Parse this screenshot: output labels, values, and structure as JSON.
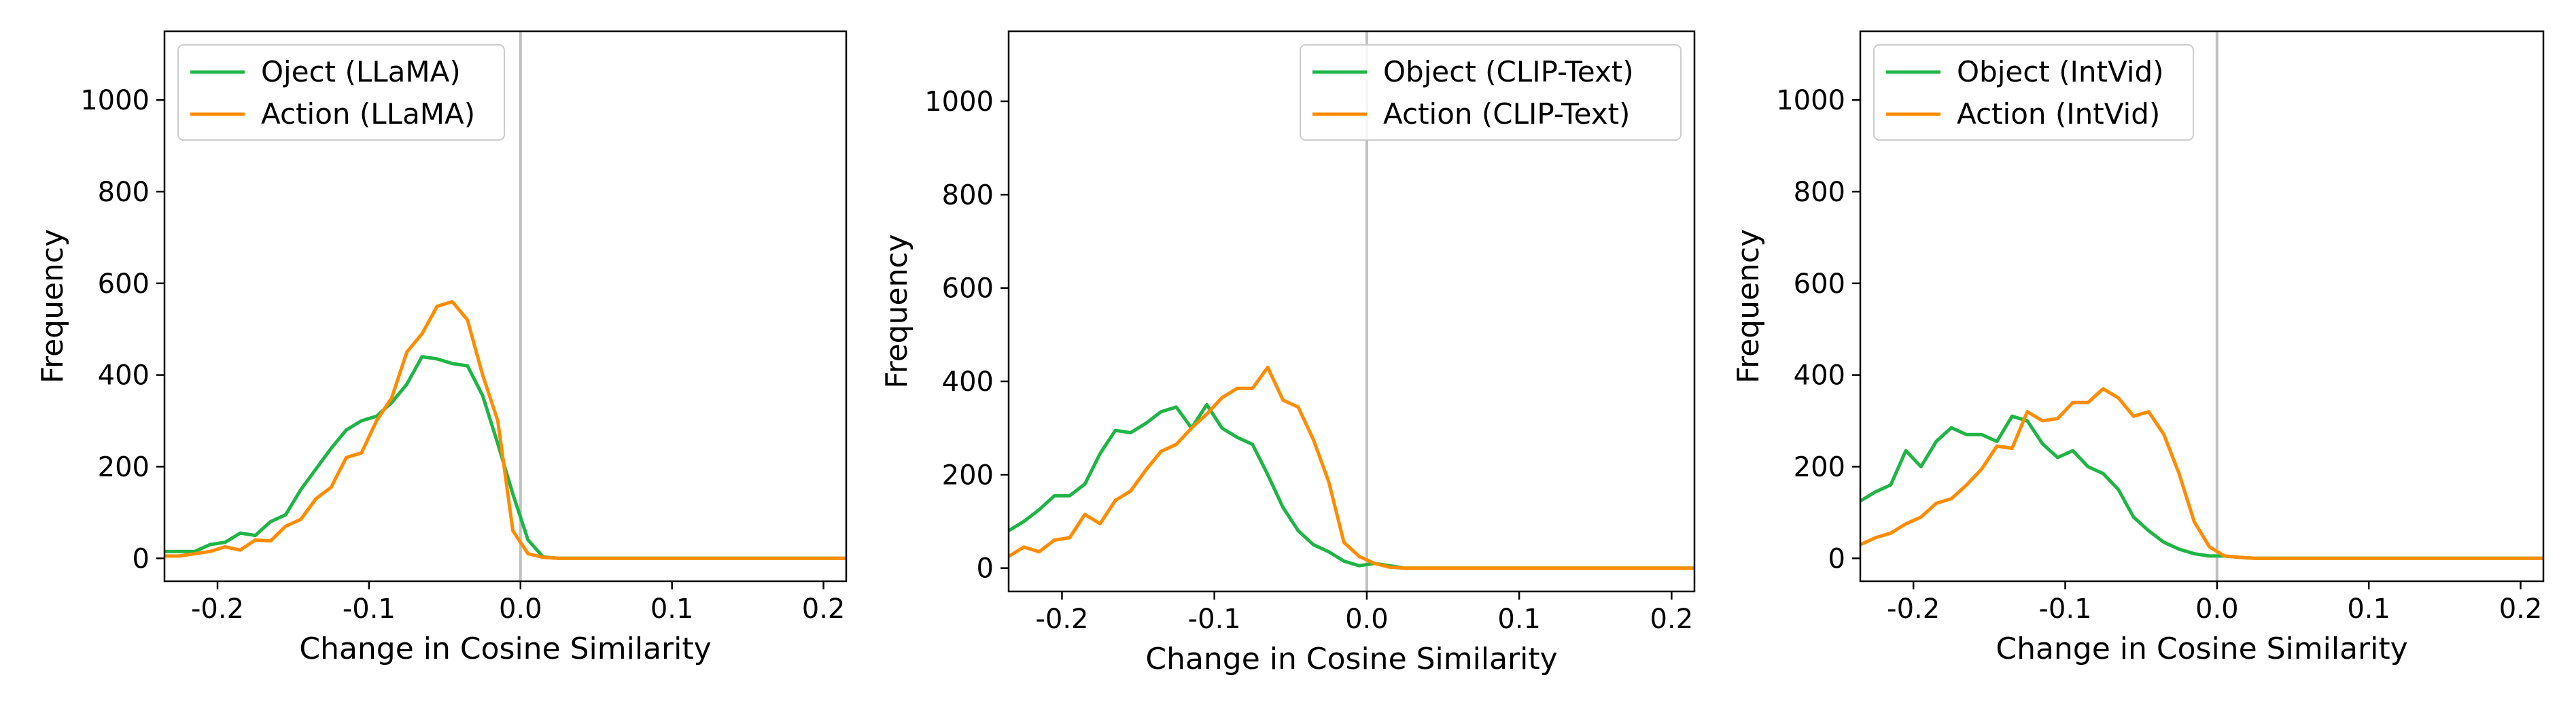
{
  "colors": {
    "object": "#1fb546",
    "action": "#ff8c00",
    "zero_line": "#c0c0c0",
    "axes": "#000000"
  },
  "chart_data": [
    {
      "type": "line",
      "xlabel": "Change in Cosine Similarity",
      "ylabel": "Frequency",
      "xlim": [
        -0.235,
        0.215
      ],
      "ylim": [
        -50,
        1150
      ],
      "xticks": [
        -0.2,
        -0.1,
        0.0,
        0.1,
        0.2
      ],
      "xtick_labels": [
        "-0.2",
        "-0.1",
        "0.0",
        "0.1",
        "0.2"
      ],
      "yticks": [
        0,
        200,
        400,
        600,
        800,
        1000
      ],
      "ytick_labels": [
        "0",
        "200",
        "400",
        "600",
        "800",
        "1000"
      ],
      "vline_x": 0.0,
      "legend_position": "top-left",
      "series": [
        {
          "name": "Oject (LLaMA)",
          "color_key": "object",
          "x": [
            -0.235,
            -0.225,
            -0.215,
            -0.205,
            -0.195,
            -0.185,
            -0.175,
            -0.165,
            -0.155,
            -0.145,
            -0.135,
            -0.125,
            -0.115,
            -0.105,
            -0.095,
            -0.085,
            -0.075,
            -0.065,
            -0.055,
            -0.045,
            -0.035,
            -0.025,
            -0.015,
            -0.005,
            0.005,
            0.015,
            0.025,
            0.05,
            0.1,
            0.15,
            0.2,
            0.215
          ],
          "y": [
            15,
            15,
            15,
            30,
            35,
            55,
            50,
            80,
            95,
            150,
            195,
            240,
            280,
            300,
            310,
            340,
            380,
            440,
            435,
            425,
            420,
            355,
            250,
            140,
            40,
            3,
            0,
            0,
            0,
            0,
            0,
            0
          ]
        },
        {
          "name": "Action (LLaMA)",
          "color_key": "action",
          "x": [
            -0.235,
            -0.225,
            -0.215,
            -0.205,
            -0.195,
            -0.185,
            -0.175,
            -0.165,
            -0.155,
            -0.145,
            -0.135,
            -0.125,
            -0.115,
            -0.105,
            -0.095,
            -0.085,
            -0.075,
            -0.065,
            -0.055,
            -0.045,
            -0.035,
            -0.025,
            -0.015,
            -0.005,
            0.005,
            0.015,
            0.025,
            0.05,
            0.1,
            0.15,
            0.2,
            0.215
          ],
          "y": [
            5,
            5,
            10,
            15,
            25,
            18,
            40,
            38,
            70,
            85,
            130,
            155,
            220,
            230,
            300,
            350,
            450,
            490,
            550,
            560,
            520,
            400,
            300,
            60,
            10,
            2,
            0,
            0,
            0,
            0,
            0,
            0
          ]
        }
      ]
    },
    {
      "type": "line",
      "xlabel": "Change in Cosine Similarity",
      "ylabel": "Frequency",
      "xlim": [
        -0.235,
        0.215
      ],
      "ylim": [
        -50,
        1150
      ],
      "xticks": [
        -0.2,
        -0.1,
        0.0,
        0.1,
        0.2
      ],
      "xtick_labels": [
        "-0.2",
        "-0.1",
        "0.0",
        "0.1",
        "0.2"
      ],
      "yticks": [
        0,
        200,
        400,
        600,
        800,
        1000
      ],
      "ytick_labels": [
        "0",
        "200",
        "400",
        "600",
        "800",
        "1000"
      ],
      "vline_x": 0.0,
      "legend_position": "top-right",
      "series": [
        {
          "name": "Object (CLIP-Text)",
          "color_key": "object",
          "x": [
            -0.235,
            -0.225,
            -0.215,
            -0.205,
            -0.195,
            -0.185,
            -0.175,
            -0.165,
            -0.155,
            -0.145,
            -0.135,
            -0.125,
            -0.115,
            -0.105,
            -0.095,
            -0.085,
            -0.075,
            -0.065,
            -0.055,
            -0.045,
            -0.035,
            -0.025,
            -0.015,
            -0.005,
            0.005,
            0.015,
            0.025,
            0.05,
            0.1,
            0.15,
            0.2,
            0.215
          ],
          "y": [
            80,
            100,
            125,
            155,
            155,
            180,
            245,
            295,
            290,
            310,
            335,
            345,
            300,
            350,
            300,
            280,
            265,
            200,
            130,
            80,
            50,
            35,
            15,
            5,
            10,
            5,
            0,
            0,
            0,
            0,
            0,
            0
          ]
        },
        {
          "name": "Action (CLIP-Text)",
          "color_key": "action",
          "x": [
            -0.235,
            -0.225,
            -0.215,
            -0.205,
            -0.195,
            -0.185,
            -0.175,
            -0.165,
            -0.155,
            -0.145,
            -0.135,
            -0.125,
            -0.115,
            -0.105,
            -0.095,
            -0.085,
            -0.075,
            -0.065,
            -0.055,
            -0.045,
            -0.035,
            -0.025,
            -0.015,
            -0.005,
            0.005,
            0.015,
            0.025,
            0.05,
            0.1,
            0.15,
            0.2,
            0.215
          ],
          "y": [
            25,
            45,
            35,
            60,
            65,
            115,
            95,
            145,
            165,
            210,
            250,
            265,
            300,
            330,
            365,
            385,
            385,
            430,
            360,
            345,
            275,
            185,
            55,
            25,
            10,
            2,
            0,
            0,
            0,
            0,
            0,
            0
          ]
        }
      ]
    },
    {
      "type": "line",
      "xlabel": "Change in Cosine Similarity",
      "ylabel": "Frequency",
      "xlim": [
        -0.235,
        0.215
      ],
      "ylim": [
        -50,
        1150
      ],
      "xticks": [
        -0.2,
        -0.1,
        0.0,
        0.1,
        0.2
      ],
      "xtick_labels": [
        "-0.2",
        "-0.1",
        "0.0",
        "0.1",
        "0.2"
      ],
      "yticks": [
        0,
        200,
        400,
        600,
        800,
        1000
      ],
      "ytick_labels": [
        "0",
        "200",
        "400",
        "600",
        "800",
        "1000"
      ],
      "vline_x": 0.0,
      "legend_position": "top-left",
      "series": [
        {
          "name": "Object (IntVid)",
          "color_key": "object",
          "x": [
            -0.235,
            -0.225,
            -0.215,
            -0.205,
            -0.195,
            -0.185,
            -0.175,
            -0.165,
            -0.155,
            -0.145,
            -0.135,
            -0.125,
            -0.115,
            -0.105,
            -0.095,
            -0.085,
            -0.075,
            -0.065,
            -0.055,
            -0.045,
            -0.035,
            -0.025,
            -0.015,
            -0.005,
            0.005,
            0.015,
            0.025,
            0.05,
            0.1,
            0.15,
            0.2,
            0.215
          ],
          "y": [
            125,
            145,
            160,
            235,
            200,
            255,
            285,
            270,
            270,
            255,
            310,
            300,
            250,
            220,
            235,
            200,
            185,
            150,
            90,
            60,
            35,
            20,
            10,
            5,
            5,
            2,
            0,
            0,
            0,
            0,
            0,
            0
          ]
        },
        {
          "name": "Action (IntVid)",
          "color_key": "action",
          "x": [
            -0.235,
            -0.225,
            -0.215,
            -0.205,
            -0.195,
            -0.185,
            -0.175,
            -0.165,
            -0.155,
            -0.145,
            -0.135,
            -0.125,
            -0.115,
            -0.105,
            -0.095,
            -0.085,
            -0.075,
            -0.065,
            -0.055,
            -0.045,
            -0.035,
            -0.025,
            -0.015,
            -0.005,
            0.005,
            0.015,
            0.025,
            0.05,
            0.1,
            0.15,
            0.2,
            0.215
          ],
          "y": [
            30,
            45,
            55,
            75,
            90,
            120,
            130,
            160,
            195,
            245,
            240,
            320,
            300,
            305,
            340,
            340,
            370,
            350,
            310,
            320,
            270,
            185,
            80,
            25,
            5,
            2,
            0,
            0,
            0,
            0,
            0,
            0
          ]
        }
      ]
    }
  ]
}
